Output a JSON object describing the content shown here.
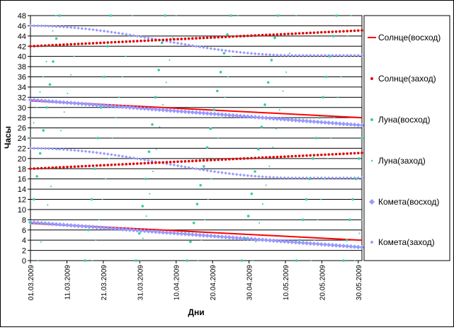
{
  "chart_data": {
    "type": "scatter",
    "xlabel": "Дни",
    "ylabel": "Часы",
    "ylim": [
      0,
      48
    ],
    "yticks": [
      0,
      2,
      4,
      6,
      8,
      10,
      12,
      14,
      16,
      18,
      20,
      22,
      24,
      26,
      28,
      30,
      32,
      34,
      36,
      38,
      40,
      42,
      44,
      46,
      48
    ],
    "xlim": [
      0,
      91
    ],
    "xtick_labels": [
      "01.03.2009",
      "11.03.2009",
      "21.03.2009",
      "31.03.2009",
      "10.04.2009",
      "20.04.2009",
      "30.04.2009",
      "10.05.2009",
      "20.05.2009",
      "30.05.2009"
    ],
    "xtick_days": [
      0,
      10,
      20,
      30,
      40,
      50,
      60,
      70,
      80,
      90
    ],
    "grid": "horizontal",
    "legend_position": "right",
    "series": [
      {
        "name": "Солнце(восход)",
        "style": "line",
        "color": "#ff0000",
        "x": [
          0,
          91
        ],
        "y": [
          [
            31.3,
            28.0
          ],
          [
            7.3,
            4.0
          ]
        ]
      },
      {
        "name": "Солнце(заход)",
        "style": "dots",
        "color": "#e00000",
        "x": [
          0,
          91
        ],
        "y": [
          [
            42.0,
            45.1
          ],
          [
            18.0,
            21.1
          ]
        ]
      },
      {
        "name": "Луна(восход)",
        "style": "dots",
        "color": "#33ccaa",
        "x": [
          0,
          91
        ],
        "y": [
          [
            7.5,
            0
          ],
          [
            8,
            48
          ],
          [
            2,
            24
          ],
          [
            0,
            48
          ],
          [
            0,
            24
          ]
        ]
      },
      {
        "name": "Луна(заход)",
        "style": "small-dots",
        "color": "#33ccaa",
        "x": [
          0,
          91
        ],
        "y": [
          [
            0,
            48
          ],
          [
            0,
            48
          ],
          [
            0,
            48
          ],
          [
            0,
            48
          ]
        ]
      },
      {
        "name": "Комета(восход)",
        "style": "diamonds",
        "color": "#9999ff",
        "x": [
          0,
          91
        ],
        "y": [
          [
            31.5,
            26.5
          ],
          [
            7.5,
            2.6
          ]
        ]
      },
      {
        "name": "Комета(заход)",
        "style": "diamonds-small",
        "color": "#9999ff",
        "x": [
          0,
          91
        ],
        "y": [
          [
            46.0,
            40.2
          ],
          [
            22.0,
            16.2
          ]
        ]
      }
    ]
  }
}
